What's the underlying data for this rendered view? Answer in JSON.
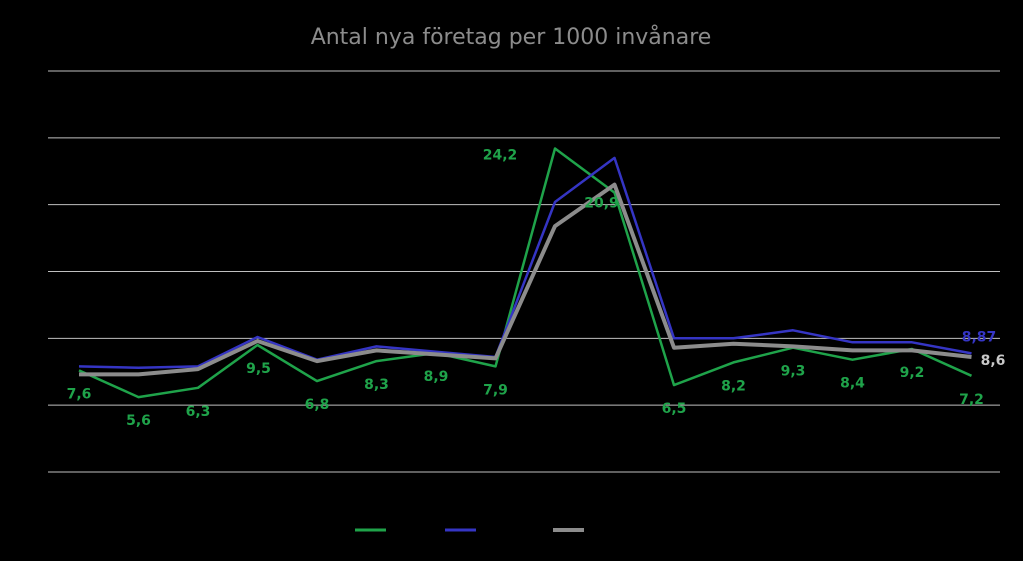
{
  "chart_data": {
    "type": "line",
    "title": "Antal nya företag per 1000 invånare",
    "xlabel": "",
    "ylabel": "",
    "ylim": [
      0,
      30
    ],
    "y_gridlines": [
      0,
      5,
      10,
      15,
      20,
      25,
      30
    ],
    "grid": true,
    "legend": "bottom",
    "x": [
      1,
      2,
      3,
      4,
      5,
      6,
      7,
      8,
      9,
      10,
      11,
      12,
      13,
      14,
      15,
      16
    ],
    "series": [
      {
        "color": "#1fa34a",
        "values": [
          7.6,
          5.6,
          6.3,
          9.5,
          6.8,
          8.3,
          8.9,
          7.9,
          24.2,
          20.9,
          6.5,
          8.2,
          9.3,
          8.4,
          9.2,
          7.2
        ],
        "labels": [
          "7,6",
          "5,6",
          "6,3",
          "9,5",
          "6,8",
          "8,3",
          "8,9",
          "7,9",
          "24,2",
          "20,9",
          "6,5",
          "8,2",
          "9,3",
          "8,4",
          "9,2",
          "7,2"
        ]
      },
      {
        "color": "#3535c4",
        "values": [
          7.9,
          7.8,
          7.9,
          10.1,
          8.4,
          9.4,
          9.0,
          8.6,
          20.2,
          23.5,
          10.0,
          10.0,
          10.6,
          9.7,
          9.7,
          8.87
        ],
        "labels": [
          "",
          "",
          "",
          "",
          "",
          "",
          "",
          "",
          "",
          "",
          "",
          "",
          "",
          "",
          "",
          "8,87"
        ]
      },
      {
        "color": "#8c8c8c",
        "values": [
          7.3,
          7.3,
          7.7,
          9.8,
          8.3,
          9.1,
          8.8,
          8.5,
          18.4,
          21.5,
          9.3,
          9.6,
          9.4,
          9.1,
          9.1,
          8.6
        ],
        "labels": [
          "",
          "",
          "",
          "",
          "",
          "",
          "",
          "",
          "",
          "",
          "",
          "",
          "",
          "",
          "",
          "8,6"
        ]
      }
    ]
  }
}
